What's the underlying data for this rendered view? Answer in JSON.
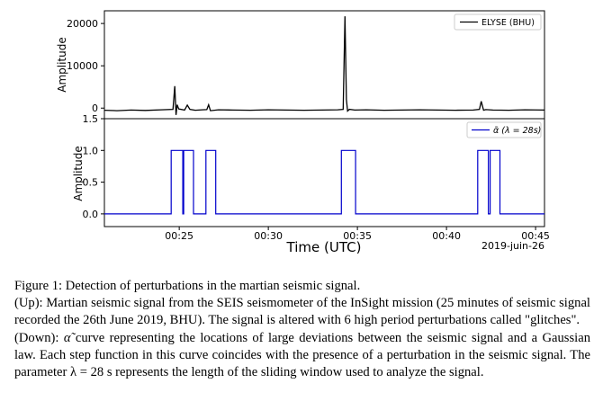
{
  "figure": {
    "chart_data": [
      {
        "type": "line",
        "ylabel": "Amplitude",
        "ylim": [
          -2500,
          23000
        ],
        "yticks": [
          0,
          10000,
          20000
        ],
        "ytick_labels": [
          "0",
          "10000",
          "20000"
        ],
        "xlim": [
          20.8,
          45.5
        ],
        "legend": "top-right",
        "grid": false,
        "series": [
          {
            "name": "ELYSE (BHU)",
            "color": "#000000",
            "x": [
              20.8,
              21.5,
              22.3,
              23.1,
              24.0,
              24.65,
              24.75,
              24.82,
              24.88,
              24.97,
              25.3,
              25.45,
              25.6,
              25.9,
              26.3,
              26.55,
              26.65,
              26.75,
              27.2,
              28.0,
              29.0,
              30.0,
              31.0,
              32.0,
              33.0,
              33.9,
              34.2,
              34.3,
              34.38,
              34.45,
              34.55,
              34.85,
              35.5,
              36.5,
              37.5,
              38.5,
              39.5,
              40.5,
              41.5,
              41.85,
              41.95,
              42.08,
              42.2,
              42.6,
              43.5,
              44.4,
              45.5
            ],
            "y": [
              -500,
              -600,
              -450,
              -550,
              -400,
              -300,
              5200,
              -1600,
              800,
              -200,
              -450,
              700,
              -300,
              -500,
              -400,
              -350,
              800,
              -600,
              -400,
              -450,
              -500,
              -400,
              -450,
              -500,
              -450,
              -400,
              -300,
              21700,
              2000,
              -700,
              -300,
              -450,
              -400,
              -500,
              -450,
              -400,
              -450,
              -500,
              -450,
              -300,
              1600,
              -500,
              -350,
              -450,
              -500,
              -400,
              -450
            ]
          }
        ]
      },
      {
        "type": "line",
        "title": "",
        "xlabel": "Time (UTC)",
        "ylabel": "Amplitude",
        "xlim": [
          20.8,
          45.5
        ],
        "ylim": [
          -0.2,
          1.5
        ],
        "yticks": [
          0.0,
          0.5,
          1.0,
          1.5
        ],
        "ytick_labels": [
          "0.0",
          "0.5",
          "1.0",
          "1.5"
        ],
        "xticks": [
          25,
          30,
          35,
          40,
          45
        ],
        "xtick_labels": [
          "00:25",
          "00:30",
          "00:35",
          "00:40",
          "00:45"
        ],
        "date_label": "2019-juin-26",
        "legend": "top-right",
        "grid": false,
        "series": [
          {
            "name": "α̃ (λ = 28s)",
            "color": "#0000cc",
            "x": [
              20.8,
              24.55,
              24.55,
              25.2,
              25.2,
              25.25,
              25.25,
              25.8,
              25.8,
              26.5,
              26.5,
              27.05,
              27.05,
              34.1,
              34.1,
              34.9,
              34.9,
              41.75,
              41.75,
              42.35,
              42.35,
              42.45,
              42.45,
              43.0,
              43.0,
              45.5
            ],
            "y": [
              0,
              0,
              1,
              1,
              0,
              0,
              1,
              1,
              0,
              0,
              1,
              1,
              0,
              0,
              1,
              1,
              0,
              0,
              1,
              1,
              0,
              0,
              1,
              1,
              0,
              0
            ]
          }
        ]
      }
    ]
  },
  "caption": {
    "line1": "Figure 1: Detection of perturbations in the martian seismic signal.",
    "line2": "(Up): Martian seismic signal from the SEIS seismometer of the InSight mission (25 minutes of seismic signal recorded the 26th June 2019, BHU). The signal is altered with 6 high period perturbations called \"glitches\".",
    "line3_symbol": "α̃",
    "line3": " curve representing the locations of large deviations between the seismic signal and a Gaussian law. Each step function in this curve coincides with the presence of a perturbation in the seismic signal. The parameter λ = 28 s represents the length of the sliding window used to analyze the signal.",
    "line3_prefix": "(Down): "
  }
}
